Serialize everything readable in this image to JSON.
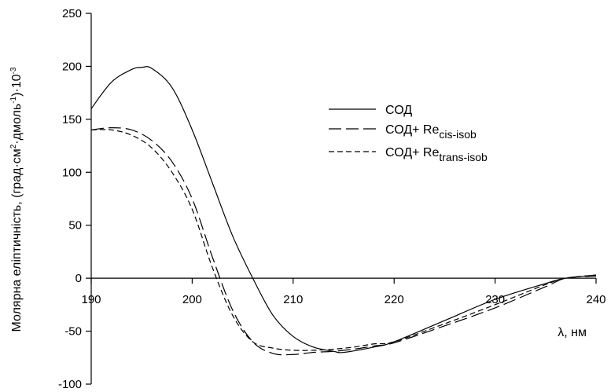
{
  "chart_data": {
    "type": "line",
    "title": "",
    "xlabel": "λ, нм",
    "ylabel_parts": {
      "a": "Молярна еліптичність, (град·см",
      "sup1": "2",
      "b": "·дмоль",
      "sup2": "-1",
      "c": ")·10",
      "sup3": "-3"
    },
    "xlim": [
      190,
      240
    ],
    "ylim": [
      -100,
      250
    ],
    "x_ticks": [
      190,
      200,
      210,
      220,
      230,
      240
    ],
    "x_tick_labels": [
      "190",
      "200",
      "210",
      "220",
      "230",
      "240"
    ],
    "y_ticks": [
      -100,
      -50,
      0,
      50,
      100,
      150,
      200,
      250
    ],
    "y_tick_labels": [
      "-100",
      "-50",
      "0",
      "50",
      "100",
      "150",
      "200",
      "250"
    ],
    "grid": false,
    "legend_position": "top-right",
    "series": [
      {
        "name": "СОД",
        "name_base": "СОД",
        "name_sub": "",
        "dash": "solid",
        "x": [
          190,
          192,
          194,
          195,
          196,
          198,
          200,
          202,
          204,
          206,
          208,
          210,
          212,
          214,
          215,
          218,
          220,
          225,
          230,
          235,
          237,
          240
        ],
        "y": [
          160,
          185,
          197,
          199,
          198,
          180,
          140,
          90,
          40,
          0,
          -35,
          -55,
          -65,
          -69,
          -70,
          -65,
          -60,
          -40,
          -20,
          -5,
          0,
          3
        ]
      },
      {
        "name": "СОД+ Recis-isob",
        "name_base": "СОД+ Re",
        "name_sub": "cis-isob",
        "dash": "long-dash",
        "x": [
          190,
          192,
          194,
          196,
          198,
          200,
          202,
          204,
          206,
          208,
          210,
          212,
          214,
          216,
          218,
          220,
          225,
          230,
          235,
          237,
          240
        ],
        "y": [
          140,
          142,
          140,
          130,
          110,
          75,
          20,
          -30,
          -60,
          -71,
          -72,
          -70,
          -69,
          -67,
          -64,
          -61,
          -45,
          -28,
          -8,
          0,
          2
        ]
      },
      {
        "name": "СОД+ Retrans-isob",
        "name_base": "СОД+ Re",
        "name_sub": "trans-isob",
        "dash": "short-dash",
        "x": [
          190,
          192,
          194,
          196,
          198,
          200,
          202,
          204,
          206,
          208,
          210,
          212,
          214,
          216,
          218,
          220,
          225,
          230,
          235,
          237,
          240
        ],
        "y": [
          140,
          140,
          135,
          123,
          100,
          65,
          10,
          -35,
          -60,
          -66,
          -68,
          -68,
          -67,
          -65,
          -62,
          -60,
          -43,
          -25,
          -6,
          0,
          3
        ]
      }
    ]
  }
}
